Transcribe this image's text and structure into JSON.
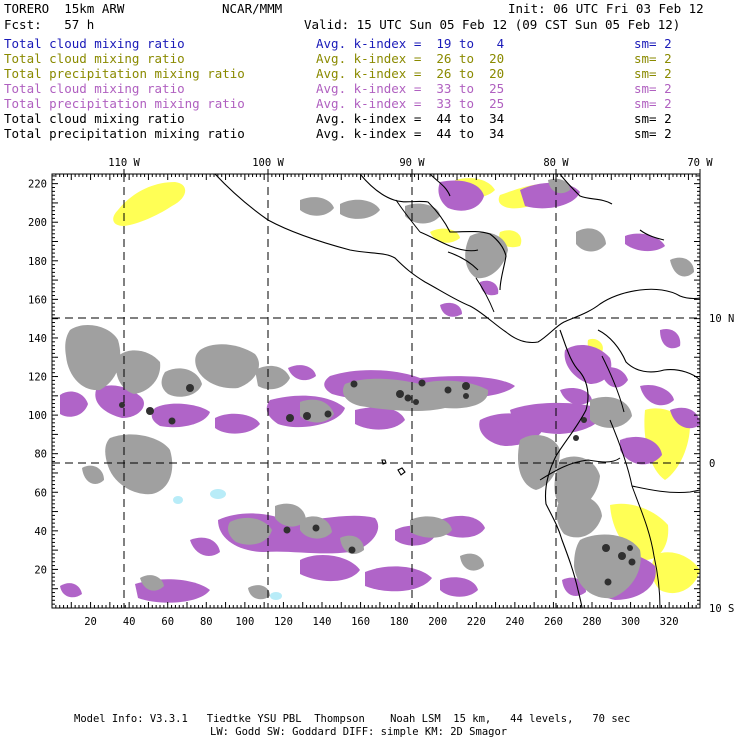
{
  "header": {
    "model": "TORERO  15km ARW",
    "org": "NCAR/MMM",
    "init": "Init: 06 UTC Fri 03 Feb 12",
    "fcst": "Fcst:   57 h",
    "valid": "Valid: 15 UTC Sun 05 Feb 12 (09 CST Sun 05 Feb 12)"
  },
  "legend": [
    {
      "label": "Total cloud mixing ratio",
      "stat": "Avg. k-index =  19 to   4",
      "sm": "sm= 2",
      "color": "#1a1ab8"
    },
    {
      "label": "Total cloud mixing ratio",
      "stat": "Avg. k-index =  26 to  20",
      "sm": "sm= 2",
      "color": "#8a8a00"
    },
    {
      "label": "Total precipitation mixing ratio",
      "stat": "Avg. k-index =  26 to  20",
      "sm": "sm= 2",
      "color": "#8a8a00"
    },
    {
      "label": "Total cloud mixing ratio",
      "stat": "Avg. k-index =  33 to  25",
      "sm": "sm= 2",
      "color": "#b060c0"
    },
    {
      "label": "Total precipitation mixing ratio",
      "stat": "Avg. k-index =  33 to  25",
      "sm": "sm= 2",
      "color": "#b060c0"
    },
    {
      "label": "Total cloud mixing ratio",
      "stat": "Avg. k-index =  44 to  34",
      "sm": "sm= 2",
      "color": "#000000"
    },
    {
      "label": "Total precipitation mixing ratio",
      "stat": "Avg. k-index =  44 to  34",
      "sm": "sm= 2",
      "color": "#000000"
    }
  ],
  "map": {
    "lon_labels": [
      "110 W",
      "100 W",
      "90 W",
      "80 W",
      "70 W"
    ],
    "lat_labels": [
      "10 N",
      "0",
      "10 S"
    ],
    "x_ticks": [
      "20",
      "40",
      "60",
      "80",
      "100",
      "120",
      "140",
      "160",
      "180",
      "200",
      "220",
      "240",
      "260",
      "280",
      "300",
      "320"
    ],
    "y_ticks": [
      "220",
      "200",
      "180",
      "160",
      "140",
      "120",
      "100",
      "80",
      "60",
      "40",
      "20"
    ],
    "colors": {
      "yellow": "#ffff55",
      "purple": "#b064c8",
      "gray": "#a0a0a0",
      "dark": "#303030",
      "cyan": "#b8ecf8"
    }
  },
  "footer": {
    "line1": "Model Info: V3.3.1   Tiedtke YSU PBL  Thompson    Noah LSM  15 km,   44 levels,   70 sec",
    "line2": "LW: Godd SW: Goddard DIFF: simple KM: 2D Smagor"
  }
}
